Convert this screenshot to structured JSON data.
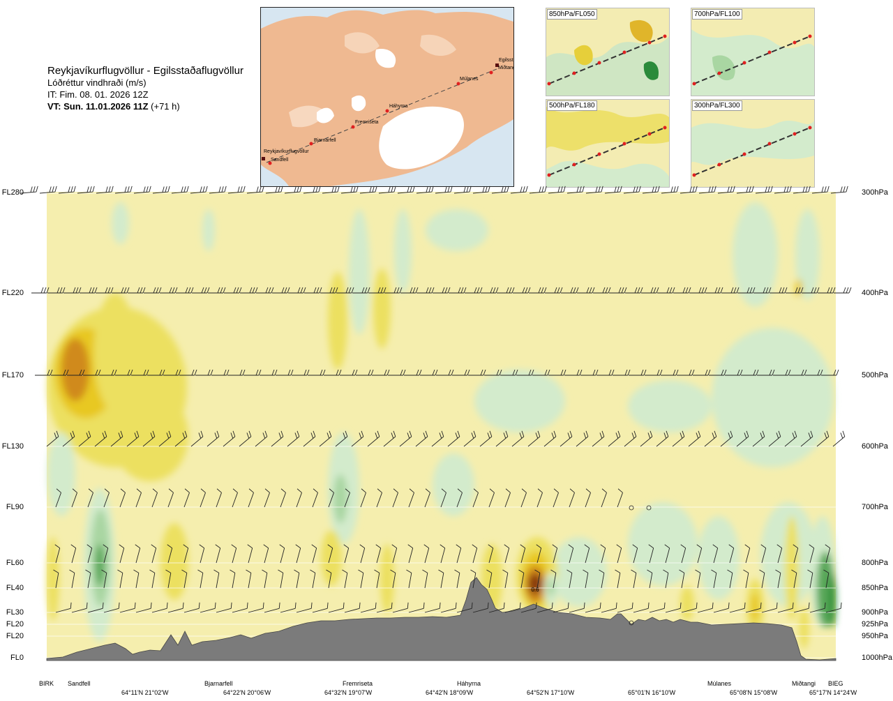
{
  "header": {
    "title": "Reykjavíkurflugvöllur - Egilsstaðaflugvöllur",
    "subtitle": "Lóðréttur vindhraði (m/s)",
    "issue_time": "IT: Fim. 08. 01. 2026 12Z",
    "valid_lead": "VT: Sun. 11.01.2026 11Z",
    "valid_offset": "(+71 h)"
  },
  "route_map": {
    "places": [
      "Reykjavíkurflugvöllur",
      "Sandfell",
      "Bjarnarfell",
      "Fremriseta",
      "Háhyrna",
      "Múlanes",
      "Egilsst",
      "Miðtangi"
    ]
  },
  "thumbnails": [
    {
      "label": "850hPa/FL050"
    },
    {
      "label": "700hPa/FL100"
    },
    {
      "label": "500hPa/FL180"
    },
    {
      "label": "300hPa/FL300"
    }
  ],
  "levels": [
    {
      "fl": "FL280",
      "hpa": "300hPa"
    },
    {
      "fl": "FL220",
      "hpa": "400hPa"
    },
    {
      "fl": "FL170",
      "hpa": "500hPa"
    },
    {
      "fl": "FL130",
      "hpa": "600hPa"
    },
    {
      "fl": "FL90",
      "hpa": "700hPa"
    },
    {
      "fl": "FL60",
      "hpa": "800hPa"
    },
    {
      "fl": "FL40",
      "hpa": "850hPa"
    },
    {
      "fl": "FL30",
      "hpa": "900hPa"
    },
    {
      "fl": "FL20",
      "hpa": "925hPa"
    },
    {
      "fl": "FL20",
      "hpa": "950hPa"
    },
    {
      "fl": "FL0",
      "hpa": "1000hPa"
    }
  ],
  "bottom_places": [
    "BIRK",
    "Sandfell",
    "Bjarnarfell",
    "Fremriseta",
    "Háhyrna",
    "Múlanes",
    "Miðtangi",
    "BIEG"
  ],
  "bottom_coords": [
    "64°11'N 21°02'W",
    "64°22'N 20°06'W",
    "64°32'N 19°07'W",
    "64°42'N 18°09'W",
    "64°52'N 17°10'W",
    "65°01'N 16°10'W",
    "65°08'N 15°08'W",
    "65°17'N 14°24'W"
  ],
  "annotation": "0.6",
  "colors": {
    "neutral": "#f5eeae",
    "weak_up": "#ece060",
    "up": "#e8c820",
    "strong_up": "#d08a1a",
    "very_strong_up": "#8a3a10",
    "weak_down": "#d3ebcc",
    "down": "#a9d6a2",
    "strong_down": "#5aa85a",
    "very_strong_down": "#1f8a2e",
    "terrain": "#7b7b7b",
    "sea": "#d7e6f1",
    "land": "#f0b98e"
  }
}
